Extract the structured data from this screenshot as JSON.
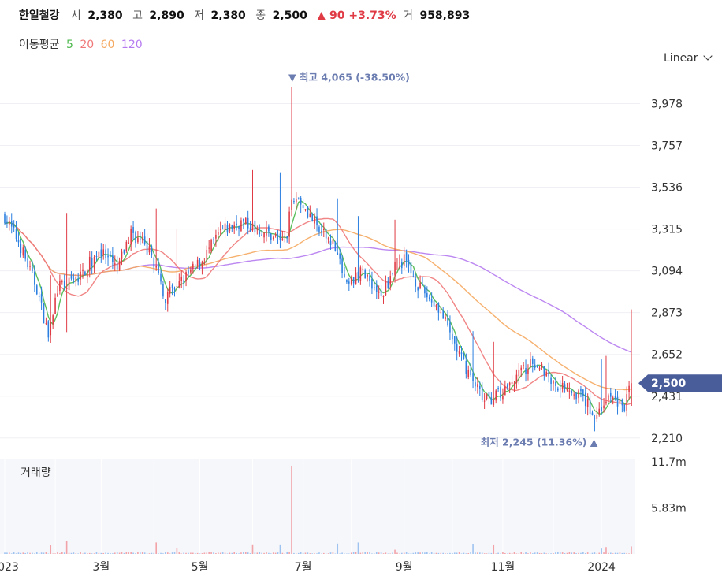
{
  "header": {
    "name": "한일철강",
    "open_label": "시",
    "open": "2,380",
    "high_label": "고",
    "high": "2,890",
    "low_label": "저",
    "low": "2,380",
    "close_label": "종",
    "close": "2,500",
    "change": "▲ 90 +3.73%",
    "volume_label": "거",
    "volume": "958,893"
  },
  "ma_legend": {
    "label": "이동평균",
    "items": [
      {
        "period": "5",
        "color": "#4bb84b"
      },
      {
        "period": "20",
        "color": "#f07878"
      },
      {
        "period": "60",
        "color": "#f5a85f"
      },
      {
        "period": "120",
        "color": "#b57af0"
      }
    ]
  },
  "scale_select": "Linear",
  "annotations": {
    "high": "▼ 최고 4,065 (-38.50%)",
    "low": "최저 2,245 (11.36%) ▲"
  },
  "price_badge": "2,500",
  "volume_label": "거래량",
  "colors": {
    "up": "#e03b45",
    "down": "#2b7fe0",
    "badge": "#4a5d9b",
    "annotation": "#6b7cb0"
  },
  "chart_data": {
    "type": "candlestick",
    "price_axis": {
      "ticks": [
        3978,
        3757,
        3536,
        3315,
        3094,
        2873,
        2652,
        2431,
        2210
      ],
      "tick_labels": [
        "3,978",
        "3,757",
        "3,536",
        "3,315",
        "3,094",
        "2,873",
        "2,652",
        "2,431",
        "2,210"
      ],
      "ylim": [
        2130,
        4130
      ]
    },
    "volume_axis": {
      "tick_labels": [
        "11.7m",
        "5.83m"
      ],
      "ticks": [
        11.7,
        5.83
      ],
      "ylim": [
        0,
        12
      ]
    },
    "x_labels": [
      "2023",
      "3월",
      "5월",
      "7월",
      "9월",
      "11월",
      "2024"
    ],
    "x_range": [
      "2023-01-02",
      "2024-01-18"
    ],
    "high": {
      "date": "2023-06-26",
      "value": 4065
    },
    "low": {
      "date": "2023-12-27",
      "value": 2245
    },
    "last": {
      "date": "2024-01-18",
      "open": 2380,
      "high": 2890,
      "low": 2380,
      "close": 2500,
      "volume": 958893
    },
    "close_anchors": [
      [
        "2023-01-02",
        3380
      ],
      [
        "2023-01-10",
        3250
      ],
      [
        "2023-01-20",
        3000
      ],
      [
        "2023-01-27",
        2750
      ],
      [
        "2023-02-02",
        3000
      ],
      [
        "2023-02-15",
        3050
      ],
      [
        "2023-02-28",
        3200
      ],
      [
        "2023-03-10",
        3100
      ],
      [
        "2023-03-20",
        3300
      ],
      [
        "2023-03-31",
        3180
      ],
      [
        "2023-04-10",
        2950
      ],
      [
        "2023-04-20",
        3050
      ],
      [
        "2023-05-02",
        3150
      ],
      [
        "2023-05-12",
        3300
      ],
      [
        "2023-05-25",
        3350
      ],
      [
        "2023-06-08",
        3300
      ],
      [
        "2023-06-22",
        3250
      ],
      [
        "2023-06-26",
        3500
      ],
      [
        "2023-07-03",
        3450
      ],
      [
        "2023-07-12",
        3300
      ],
      [
        "2023-07-20",
        3250
      ],
      [
        "2023-07-28",
        3000
      ],
      [
        "2023-08-08",
        3100
      ],
      [
        "2023-08-18",
        2950
      ],
      [
        "2023-08-25",
        3100
      ],
      [
        "2023-09-01",
        3150
      ],
      [
        "2023-09-12",
        3000
      ],
      [
        "2023-09-22",
        2900
      ],
      [
        "2023-10-05",
        2650
      ],
      [
        "2023-10-20",
        2400
      ],
      [
        "2023-11-01",
        2450
      ],
      [
        "2023-11-10",
        2550
      ],
      [
        "2023-11-22",
        2620
      ],
      [
        "2023-12-01",
        2500
      ],
      [
        "2023-12-12",
        2480
      ],
      [
        "2023-12-20",
        2420
      ],
      [
        "2023-12-27",
        2330
      ],
      [
        "2024-01-05",
        2420
      ],
      [
        "2024-01-15",
        2380
      ],
      [
        "2024-01-18",
        2500
      ]
    ],
    "moving_averages": {
      "ma5": {
        "color": "#4bb84b"
      },
      "ma20": {
        "color": "#f07878"
      },
      "ma60": {
        "color": "#f5a85f"
      },
      "ma120": {
        "color": "#b57af0"
      }
    }
  }
}
